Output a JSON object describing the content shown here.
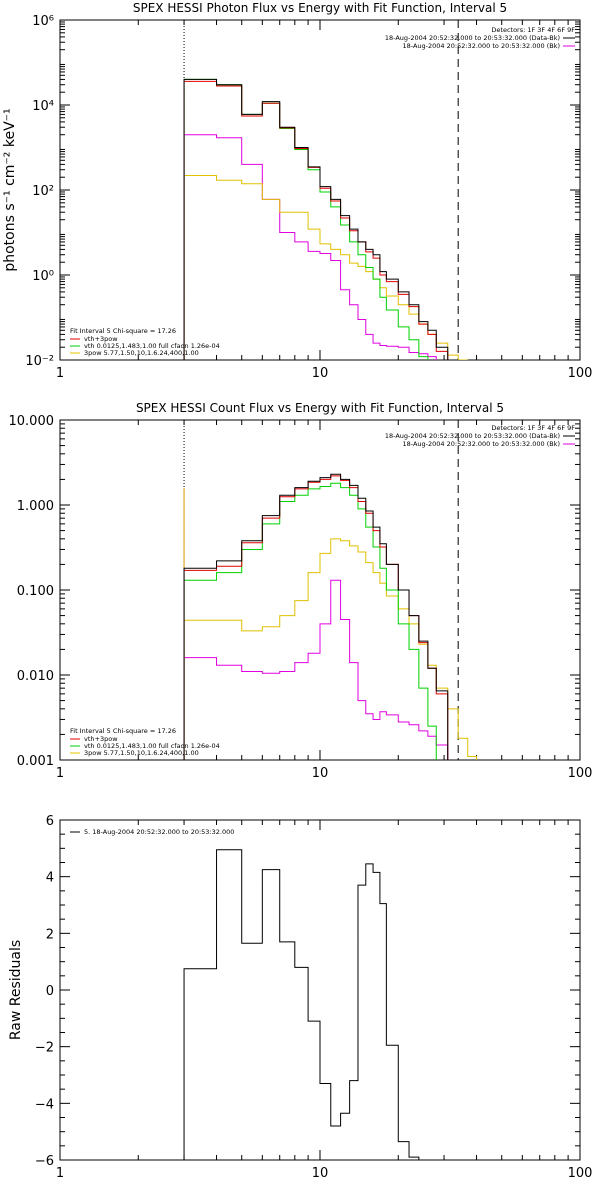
{
  "colors": {
    "data": "#000000",
    "total_fit": "#e00000",
    "vth": "#00d000",
    "pileup": "#e0c000",
    "background": "#e000e0",
    "markers": "#000000"
  },
  "markers": {
    "energy_low": 3.0,
    "energy_high": 34.0,
    "fit_low_color": "#e0a000"
  },
  "panels": [
    {
      "id": "photon",
      "title": "SPEX HESSI Photon Flux vs Energy with Fit Function, Interval 5",
      "ylabel": "photons s⁻¹ cm⁻² keV⁻¹",
      "ylog": true,
      "ylim": [
        0.01,
        1000000
      ],
      "yticks": [
        0.01,
        1,
        100,
        10000,
        1000000
      ],
      "ytick_labels": [
        "10⁻²",
        "10⁰",
        "10²",
        "10⁴",
        "10⁶"
      ],
      "legend_right": [
        "Detectors: 1F 3F 4F 6F 9F",
        "18-Aug-2004 20:52:32.000 to 20:53:32.000 (Data-Bk)",
        "18-Aug-2004 20:52:32.000 to 20:53:32.000 (Bk)"
      ],
      "legend_left": [
        "Fit Interval 5    Chi-square = 17.26",
        "vth+3pow",
        "vth 0.0125,1.483,1.00  full cfaon 1.26e-04",
        "3pow 5.77,1.50,10,1.6.24,400,1.00"
      ]
    },
    {
      "id": "count",
      "title": "SPEX HESSI Count Flux vs Energy with Fit Function, Interval 5",
      "ylabel": "",
      "ylog": true,
      "ylim": [
        0.001,
        10
      ],
      "yticks": [
        0.001,
        0.01,
        0.1,
        1,
        10
      ],
      "ytick_labels": [
        "0.001",
        "0.010",
        "0.100",
        "1.000",
        "10.000"
      ],
      "legend_right": [
        "Detectors: 1F 3F 4F 6F 9F",
        "18-Aug-2004 20:52:32.000 to 20:53:32.000 (Data-Bk)",
        "18-Aug-2004 20:52:32.000 to 20:53:32.000 (Bk)"
      ],
      "legend_left": [
        "Fit Interval 5    Chi-square = 17.26",
        "vth+3pow",
        "vth 0.0125,1.483,1.00  full cfaon 1.26e-04",
        "3pow 5.77,1.50,10,1.6.24,400,1.00"
      ]
    },
    {
      "id": "residuals",
      "title": "",
      "ylabel": "Raw Residuals",
      "ylog": false,
      "ylim": [
        -6,
        6
      ],
      "yticks": [
        -6,
        -4,
        -2,
        0,
        2,
        4,
        6
      ],
      "ytick_labels": [
        "−6",
        "−4",
        "−2",
        "0",
        "2",
        "4",
        "6"
      ],
      "legend_right": [],
      "legend_left": [
        "5. 18-Aug-2004 20:52:32.000 to 20:53:32.000"
      ]
    }
  ],
  "x_axis": {
    "scale": "log",
    "xlim": [
      1,
      100
    ],
    "ticks": [
      1,
      10,
      100
    ],
    "tick_labels": [
      "1",
      "10",
      "100"
    ]
  },
  "chart_data": [
    {
      "type": "line",
      "title": "SPEX HESSI Photon Flux vs Energy with Fit Function, Interval 5",
      "xlabel": "",
      "ylabel": "photons s⁻¹ cm⁻² keV⁻¹",
      "xscale": "log",
      "yscale": "log",
      "xlim": [
        1,
        100
      ],
      "ylim": [
        0.01,
        1000000
      ],
      "x_edges": [
        3,
        4,
        5,
        6,
        7,
        8,
        9,
        10,
        11,
        12,
        13,
        14,
        15,
        16,
        17,
        18,
        20,
        22,
        24,
        26,
        28,
        31,
        34,
        37,
        40,
        43
      ],
      "series": [
        {
          "name": "Data-Bk",
          "color": "#000000",
          "values": [
            40000,
            30000,
            6000,
            12000,
            3000,
            1000,
            350,
            120,
            60,
            25,
            12,
            6,
            4,
            3.0,
            1.2,
            0.8,
            0.4,
            0.2,
            0.08,
            0.05,
            0.02,
            0.01,
            null,
            null,
            null
          ]
        },
        {
          "name": "vth+3pow",
          "color": "#e00000",
          "values": [
            36000,
            28000,
            5500,
            11000,
            2900,
            950,
            340,
            110,
            55,
            22,
            11,
            6,
            3.5,
            2.5,
            1.0,
            0.7,
            0.35,
            0.18,
            0.07,
            0.04,
            0.016,
            0.009,
            null,
            null,
            null
          ]
        },
        {
          "name": "vth",
          "color": "#00d000",
          "values": [
            40000,
            30000,
            6000,
            11000,
            2800,
            900,
            300,
            90,
            40,
            15,
            6,
            3,
            1.5,
            0.8,
            0.3,
            0.15,
            0.06,
            0.03,
            0.012,
            null,
            null,
            null,
            null,
            null,
            null
          ]
        },
        {
          "name": "3pow",
          "color": "#e0c000",
          "values": [
            220,
            170,
            140,
            60,
            30,
            30,
            12,
            5.4,
            4.0,
            3.0,
            1.9,
            1.6,
            1.2,
            0.8,
            0.5,
            0.32,
            0.2,
            0.12,
            0.07,
            0.04,
            0.025,
            0.013,
            0.01,
            null,
            null
          ]
        },
        {
          "name": "Bk",
          "color": "#e000e0",
          "values": [
            2000,
            1700,
            400,
            60,
            10,
            6,
            3.6,
            3.2,
            2.2,
            0.45,
            0.2,
            0.09,
            0.04,
            0.025,
            0.022,
            0.021,
            0.02,
            0.015,
            0.014,
            0.012,
            null,
            null,
            null,
            null,
            null
          ]
        }
      ]
    },
    {
      "type": "line",
      "title": "SPEX HESSI Count Flux vs Energy with Fit Function, Interval 5",
      "xlabel": "",
      "ylabel": "",
      "xscale": "log",
      "yscale": "log",
      "xlim": [
        1,
        100
      ],
      "ylim": [
        0.001,
        10
      ],
      "x_edges": [
        3,
        4,
        5,
        6,
        7,
        8,
        9,
        10,
        11,
        12,
        13,
        14,
        15,
        16,
        17,
        18,
        20,
        22,
        24,
        26,
        28,
        31,
        34,
        37,
        40,
        43
      ],
      "series": [
        {
          "name": "Data-Bk",
          "color": "#000000",
          "values": [
            0.18,
            0.22,
            0.38,
            0.75,
            1.3,
            1.6,
            1.9,
            2.1,
            2.3,
            2.0,
            1.7,
            1.2,
            0.85,
            0.55,
            0.35,
            0.2,
            0.1,
            0.05,
            0.025,
            0.012,
            0.0065,
            null,
            null,
            null,
            null
          ]
        },
        {
          "name": "vth+3pow",
          "color": "#e00000",
          "values": [
            0.17,
            0.19,
            0.36,
            0.7,
            1.25,
            1.55,
            1.85,
            2.0,
            2.2,
            1.95,
            1.6,
            1.1,
            0.8,
            0.5,
            0.32,
            0.2,
            0.1,
            0.05,
            0.024,
            0.012,
            0.006,
            null,
            null,
            null,
            null
          ]
        },
        {
          "name": "vth",
          "color": "#00d000",
          "values": [
            0.13,
            0.16,
            0.3,
            0.6,
            1.1,
            1.3,
            1.55,
            1.65,
            1.8,
            1.6,
            1.3,
            0.9,
            0.55,
            0.32,
            0.18,
            0.1,
            0.04,
            0.02,
            0.007,
            0.0025,
            null,
            null,
            null,
            null,
            null
          ]
        },
        {
          "name": "3pow",
          "color": "#e0c000",
          "values": [
            0.044,
            0.044,
            0.033,
            0.037,
            0.05,
            0.075,
            0.16,
            0.27,
            0.4,
            0.38,
            0.33,
            0.28,
            0.21,
            0.16,
            0.12,
            0.085,
            0.06,
            0.04,
            0.023,
            0.013,
            0.007,
            0.004,
            0.0018,
            0.0011,
            null
          ]
        },
        {
          "name": "Bk",
          "color": "#e000e0",
          "values": [
            0.016,
            0.013,
            0.011,
            0.0105,
            0.011,
            0.014,
            0.018,
            0.04,
            0.13,
            0.045,
            0.014,
            0.005,
            0.0035,
            0.003,
            0.0037,
            0.0034,
            0.0028,
            0.0026,
            0.0022,
            0.0019,
            0.0015,
            null,
            null,
            null,
            null
          ]
        }
      ]
    },
    {
      "type": "line",
      "title": "",
      "xlabel": "",
      "ylabel": "Raw Residuals",
      "xscale": "log",
      "yscale": "linear",
      "xlim": [
        1,
        100
      ],
      "ylim": [
        -6,
        6
      ],
      "x_edges": [
        3,
        4,
        5,
        6,
        7,
        8,
        9,
        10,
        11,
        12,
        13,
        14,
        15,
        16,
        17,
        18,
        20,
        22,
        24,
        26,
        28,
        31,
        34,
        37,
        40,
        43
      ],
      "series": [
        {
          "name": "5. 18-Aug-2004 20:52:32.000 to 20:53:32.000",
          "color": "#000000",
          "values": [
            0.75,
            4.95,
            1.65,
            4.25,
            1.7,
            0.8,
            -1.1,
            -3.3,
            -4.8,
            -4.35,
            -3.2,
            3.7,
            4.45,
            4.15,
            3.05,
            -1.95,
            -5.35,
            -5.9,
            -6.0,
            null,
            null,
            null,
            null,
            null,
            null
          ]
        }
      ]
    }
  ]
}
